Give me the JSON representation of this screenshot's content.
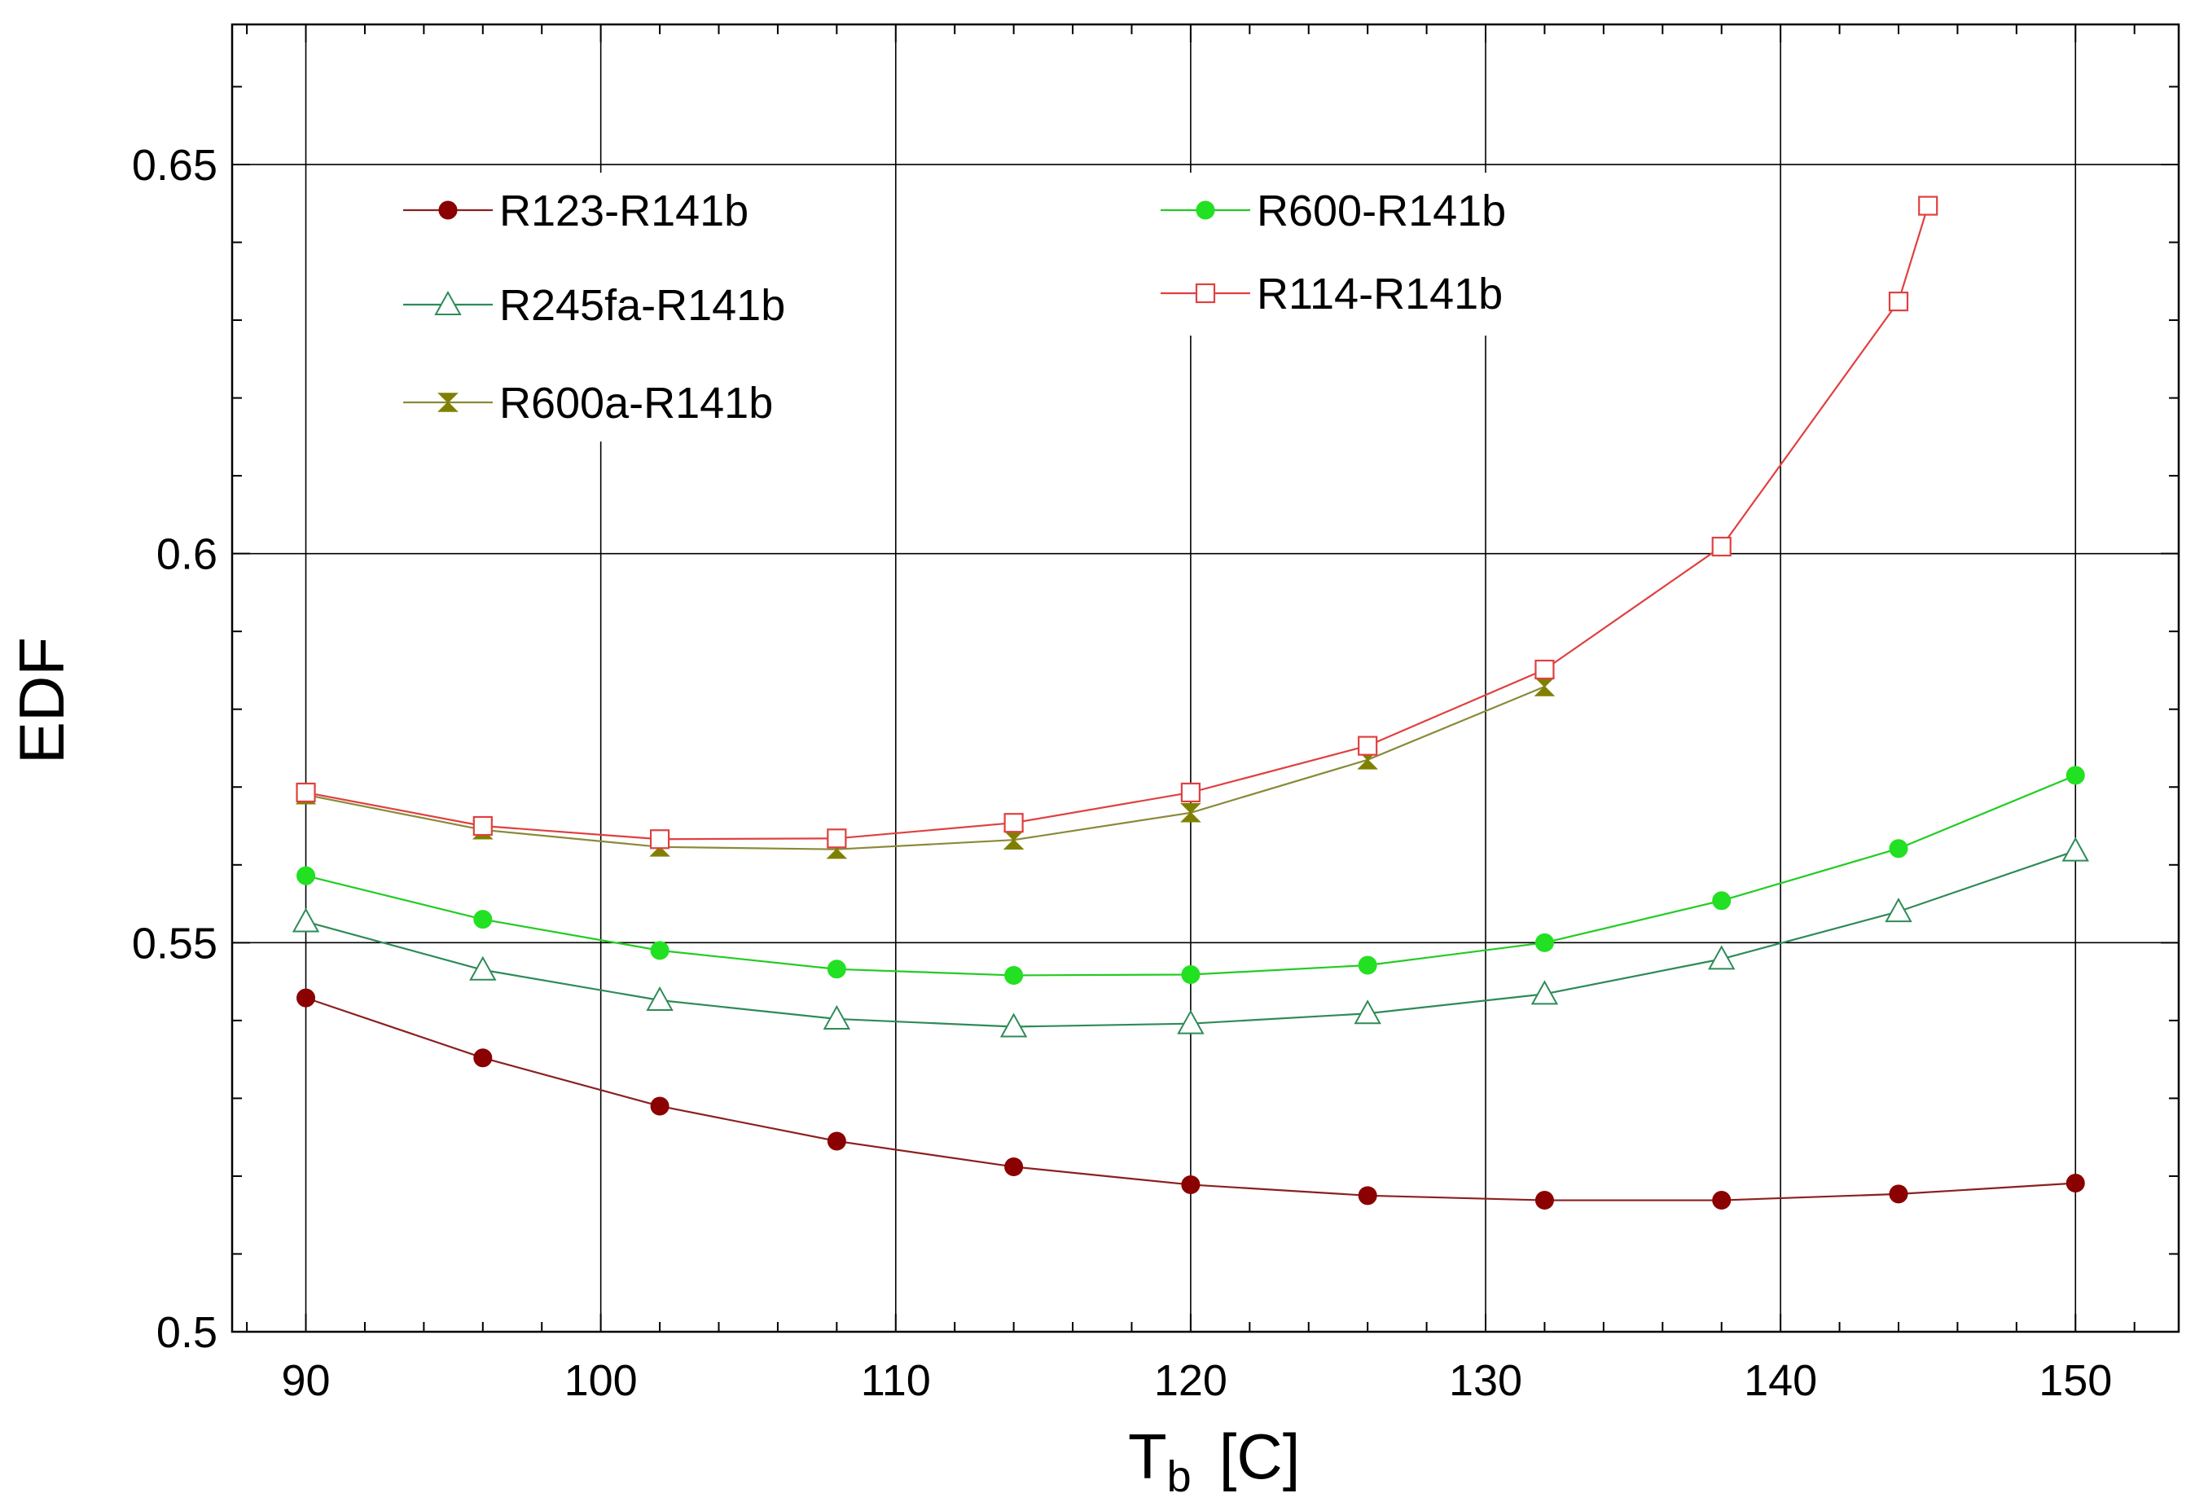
{
  "chart_data": {
    "type": "line",
    "title": "",
    "xlabel": "T",
    "xlabel_sub": "b",
    "xlabel_unit": "[C]",
    "ylabel": "EDF",
    "xlim": [
      87.5,
      153.5
    ],
    "ylim": [
      0.5,
      0.668
    ],
    "xticks": [
      90,
      100,
      110,
      120,
      130,
      140,
      150
    ],
    "xtick_labels": [
      "90",
      "100",
      "110",
      "120",
      "130",
      "140",
      "150"
    ],
    "yticks": [
      0.5,
      0.55,
      0.6,
      0.65
    ],
    "ytick_labels": [
      "0.5",
      "0.55",
      "0.6",
      "0.65"
    ],
    "x_minor_step": 2,
    "y_minor_step": 0.01,
    "grid": true,
    "legend_position": "top-left",
    "series": [
      {
        "name": "R123-R141b",
        "marker": "filled-circle",
        "color": "#8b0000",
        "line_color": "#8b2020",
        "x": [
          90,
          96,
          102,
          108,
          114,
          120,
          126,
          132,
          138,
          144,
          150
        ],
        "values": [
          0.5429,
          0.5352,
          0.529,
          0.5245,
          0.5212,
          0.5189,
          0.5175,
          0.5169,
          0.5169,
          0.5177,
          0.5191
        ]
      },
      {
        "name": "R245fa-R141b",
        "marker": "open-triangle",
        "color": "#2e8b57",
        "line_color": "#2e8b57",
        "x": [
          90,
          96,
          102,
          108,
          114,
          120,
          126,
          132,
          138,
          144,
          150
        ],
        "values": [
          0.5527,
          0.5465,
          0.5426,
          0.5402,
          0.5392,
          0.5396,
          0.5409,
          0.5434,
          0.5479,
          0.554,
          0.5618
        ]
      },
      {
        "name": "R600a-R141b",
        "marker": "hourglass",
        "color": "#808000",
        "line_color": "#8a8a3a",
        "x": [
          90,
          96,
          102,
          108,
          114,
          120,
          126,
          132
        ],
        "values": [
          0.569,
          0.5645,
          0.5623,
          0.562,
          0.5632,
          0.5667,
          0.5735,
          0.5829
        ]
      },
      {
        "name": "R600-R141b",
        "marker": "filled-circle",
        "color": "#22e022",
        "line_color": "#22cc22",
        "x": [
          90,
          96,
          102,
          108,
          114,
          120,
          126,
          132,
          138,
          144,
          150
        ],
        "values": [
          0.5586,
          0.553,
          0.549,
          0.5466,
          0.5458,
          0.5459,
          0.5471,
          0.55,
          0.5554,
          0.5621,
          0.5715
        ]
      },
      {
        "name": "R114-R141b",
        "marker": "open-square",
        "color": "#e04040",
        "line_color": "#e04040",
        "x": [
          90,
          96,
          102,
          108,
          114,
          120,
          126,
          132,
          138,
          144,
          145
        ],
        "values": [
          0.5693,
          0.565,
          0.5633,
          0.5634,
          0.5654,
          0.5693,
          0.5753,
          0.5851,
          0.6009,
          0.6324,
          0.6447
        ]
      }
    ]
  }
}
